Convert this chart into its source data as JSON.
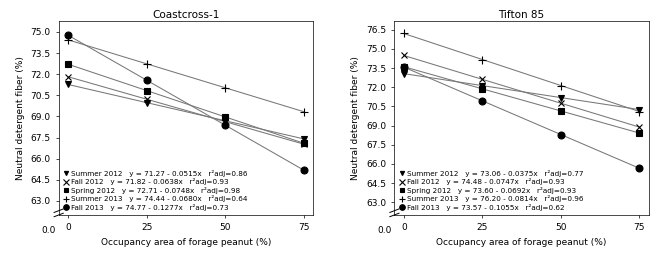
{
  "panels": [
    {
      "title": "Coastcross-1",
      "series": [
        {
          "label": "Summer 2012",
          "intercept": 71.27,
          "slope": -0.0515,
          "r2adj": 0.86,
          "marker": "v",
          "ms": 4
        },
        {
          "label": "Fall 2012",
          "intercept": 71.82,
          "slope": -0.0638,
          "r2adj": 0.93,
          "marker": "x",
          "ms": 5
        },
        {
          "label": "Spring 2012",
          "intercept": 72.71,
          "slope": -0.0748,
          "r2adj": 0.98,
          "marker": "s",
          "ms": 4
        },
        {
          "label": "Summer 2013",
          "intercept": 74.44,
          "slope": -0.068,
          "r2adj": 0.64,
          "marker": "+",
          "ms": 6
        },
        {
          "label": "Fall 2013",
          "intercept": 74.77,
          "slope": -0.1277,
          "r2adj": 0.73,
          "marker": "o",
          "ms": 5
        }
      ],
      "yticks": [
        63.0,
        64.5,
        66.0,
        67.5,
        69.0,
        70.5,
        72.0,
        73.5,
        75.0
      ],
      "ylim": [
        62.0,
        75.8
      ],
      "y0_label": "0.0",
      "ylabel": "Neutral detergent fiber (%)",
      "legend_seasons": [
        "Summer 2012",
        "Fall 2012",
        "Spring 2012",
        "Summer 2013",
        "Fall 2013"
      ],
      "legend_equations": [
        "y = 71.27 - 0.0515x",
        "y = 71.82 - 0.0638x",
        "y = 72.71 - 0.0748x",
        "y = 74.44 - 0.0680x",
        "y = 74.77 - 0.1277x"
      ],
      "legend_r2": [
        "r²adj=0.86",
        "r²adj=0.93",
        "r²adj=0.98",
        "r²adj=0.64",
        "r²adj=0.73"
      ]
    },
    {
      "title": "Tifton 85",
      "series": [
        {
          "label": "Summer 2012",
          "intercept": 73.06,
          "slope": -0.0375,
          "r2adj": 0.77,
          "marker": "v",
          "ms": 4
        },
        {
          "label": "Fall 2012",
          "intercept": 74.48,
          "slope": -0.0747,
          "r2adj": 0.93,
          "marker": "x",
          "ms": 5
        },
        {
          "label": "Spring 2012",
          "intercept": 73.6,
          "slope": -0.0692,
          "r2adj": 0.93,
          "marker": "s",
          "ms": 4
        },
        {
          "label": "Summer 2013",
          "intercept": 76.2,
          "slope": -0.0814,
          "r2adj": 0.96,
          "marker": "+",
          "ms": 6
        },
        {
          "label": "Fall 2013",
          "intercept": 73.57,
          "slope": -0.1055,
          "r2adj": 0.62,
          "marker": "o",
          "ms": 5
        }
      ],
      "yticks": [
        63.0,
        64.5,
        66.0,
        67.5,
        69.0,
        70.5,
        72.0,
        73.5,
        75.0,
        76.5
      ],
      "ylim": [
        62.0,
        77.2
      ],
      "y0_label": "0.0",
      "ylabel": "Neutral detergent fiber (%)",
      "legend_seasons": [
        "Summer 2012",
        "Fall 2012",
        "Spring 2012",
        "Summer 2013",
        "Fall 2013"
      ],
      "legend_equations": [
        "y = 73.06 - 0.0375x",
        "y = 74.48 - 0.0747x",
        "y = 73.60 - 0.0692x",
        "y = 76.20 - 0.0814x",
        "y = 73.57 - 0.1055x"
      ],
      "legend_r2": [
        "r²adj=0.77",
        "r²adj=0.93",
        "r²adj=0.93",
        "r²adj=0.96",
        "r²adj=0.62"
      ]
    }
  ],
  "xvals": [
    0,
    25,
    50,
    75
  ],
  "xticks": [
    0,
    25,
    50,
    75
  ],
  "xlabel": "Occupancy area of forage peanut (%)",
  "line_color": "#777777",
  "font_size": 6.5,
  "title_font_size": 7.5,
  "legend_fontsize": 5.2
}
